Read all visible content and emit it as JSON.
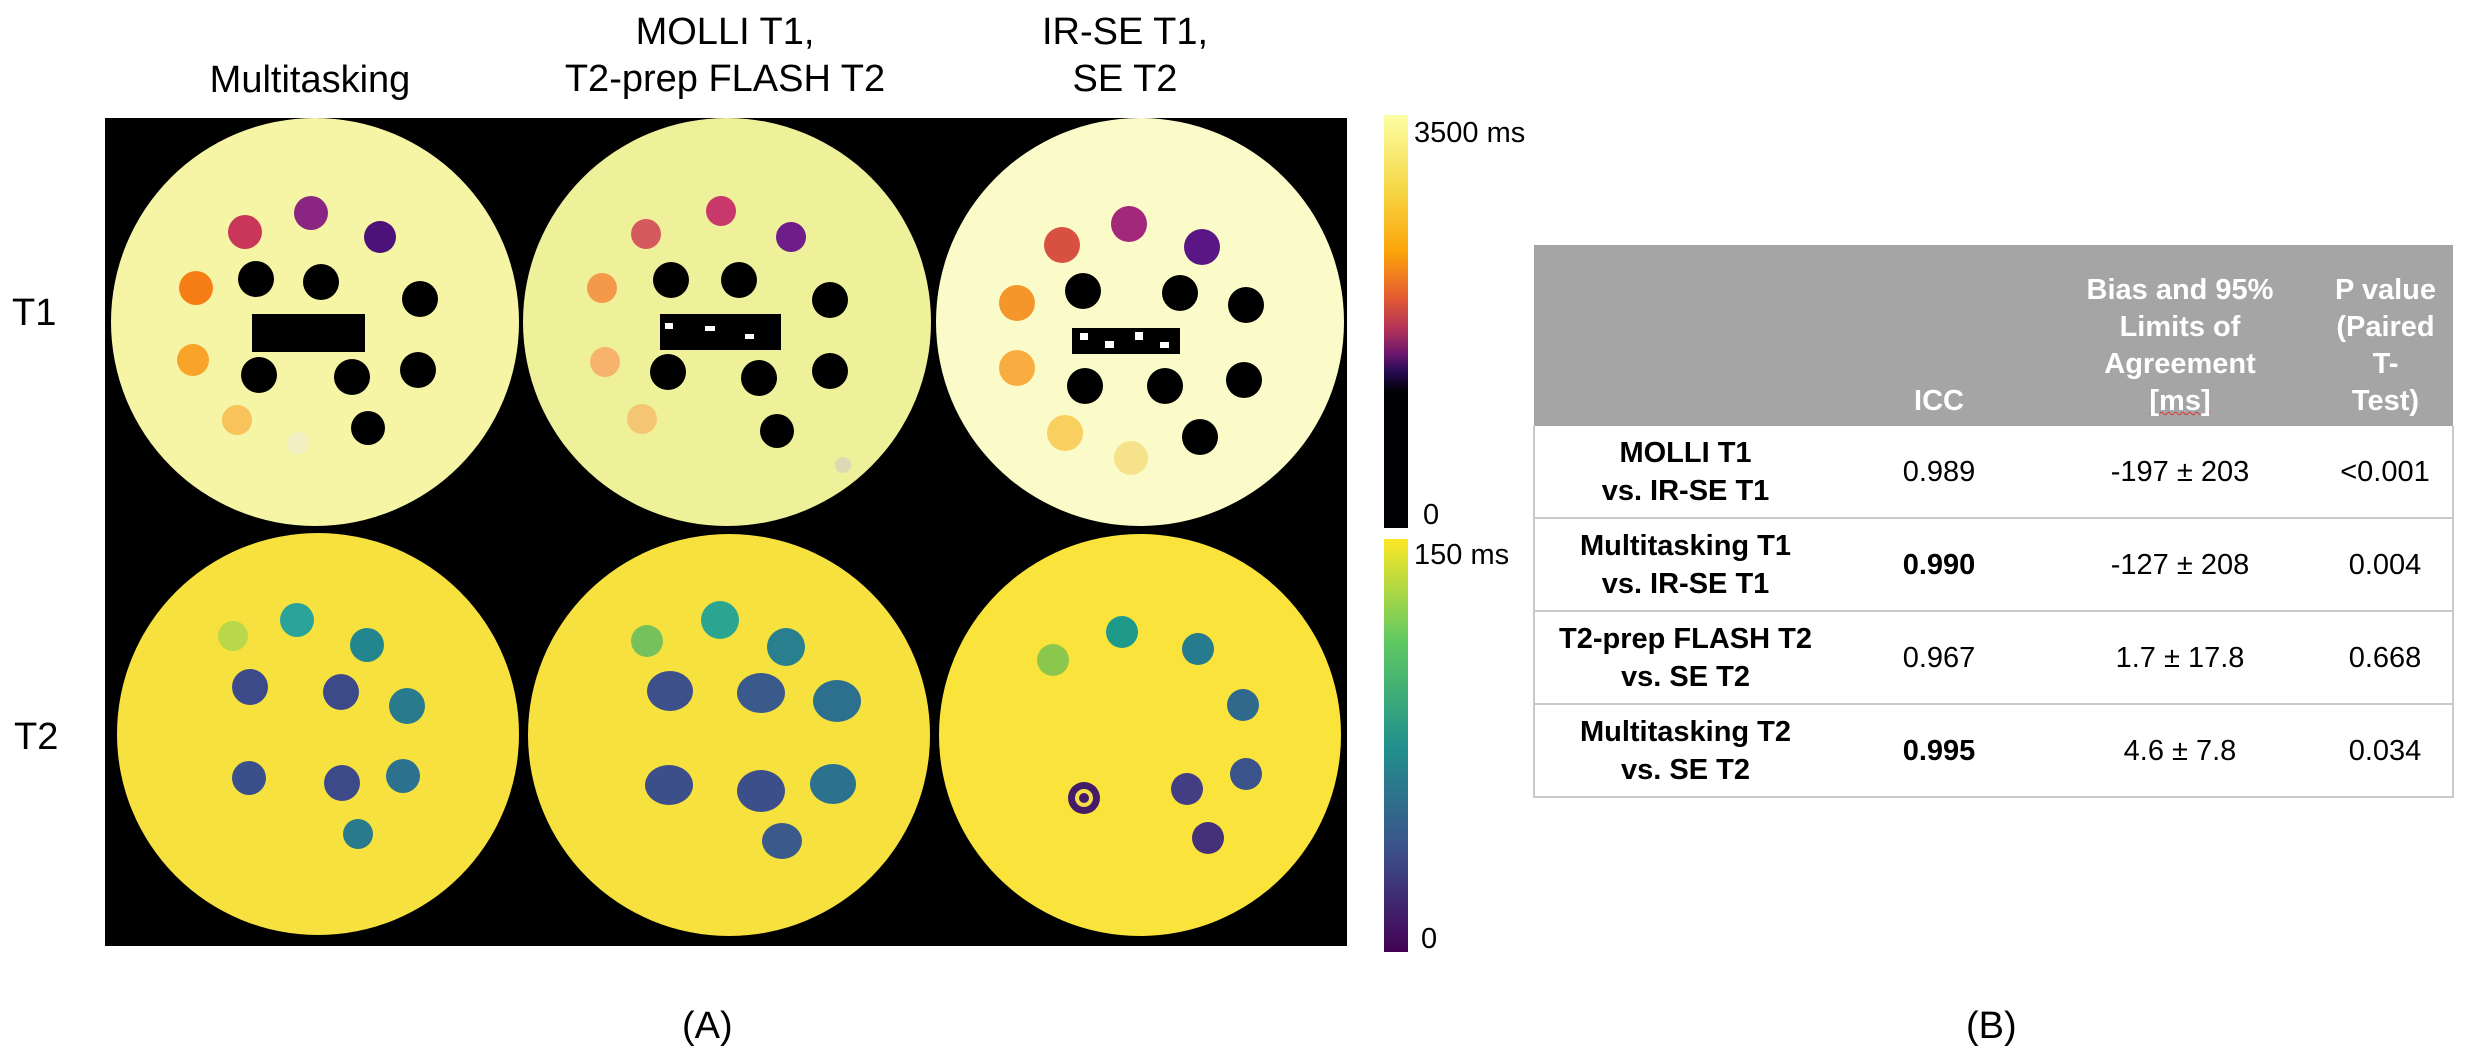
{
  "figure": {
    "column_headers": [
      [
        "Multitasking"
      ],
      [
        "MOLLI T1,",
        "T2-prep FLASH T2"
      ],
      [
        "IR-SE T1,",
        "SE T2"
      ]
    ],
    "row_labels": [
      "T1",
      "T2"
    ],
    "panel_labels": [
      "(A)",
      "(B)"
    ],
    "colorbars": {
      "t1": {
        "max_label": "3500 ms",
        "min_label": "0"
      },
      "t2": {
        "max_label": "150 ms",
        "min_label": "0"
      }
    },
    "colors": {
      "background": "#000000",
      "t1_phantom": "#f6f5a5",
      "t1_phantom_molli": "#eef09a",
      "t2_phantom": "#f7e13e"
    }
  },
  "table": {
    "headers": [
      "",
      "ICC",
      "Bias and 95% Limits of Agreement [ms]",
      "P value (Paired T-Test)"
    ],
    "header_lines": [
      [],
      [
        "ICC"
      ],
      [
        "Bias and 95%",
        "Limits of",
        "Agreement",
        "[ms]"
      ],
      [
        "P value",
        "(Paired T-",
        "Test)"
      ]
    ],
    "rows": [
      {
        "comparison": [
          "MOLLI T1",
          "vs. IR-SE T1"
        ],
        "icc": "0.989",
        "icc_bold": false,
        "bias": "-197 ± 203",
        "p": "<0.001"
      },
      {
        "comparison": [
          "Multitasking T1",
          "vs. IR-SE T1"
        ],
        "icc": "0.990",
        "icc_bold": true,
        "bias": "-127 ± 208",
        "p": "0.004"
      },
      {
        "comparison": [
          "T2-prep FLASH T2",
          "vs. SE T2"
        ],
        "icc": "0.967",
        "icc_bold": false,
        "bias": "1.7 ± 17.8",
        "p": "0.668"
      },
      {
        "comparison": [
          "Multitasking T2",
          "vs. SE T2"
        ],
        "icc": "0.995",
        "icc_bold": true,
        "bias": "4.6 ± 7.8",
        "p": "0.034"
      }
    ],
    "colors": {
      "header_bg": "#a5a5a5",
      "header_text": "#ffffff",
      "border": "#c9c9c9"
    }
  }
}
